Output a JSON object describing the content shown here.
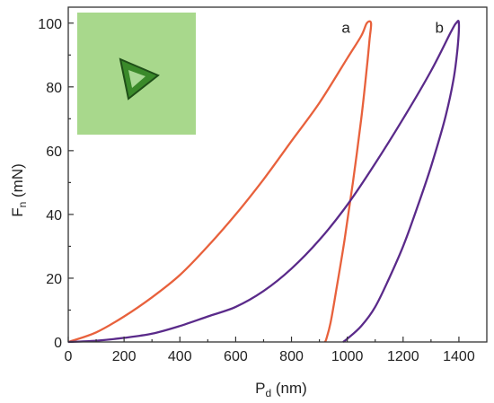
{
  "chart_data": {
    "type": "line",
    "title": "",
    "xlabel": {
      "main": "P",
      "sub": "d",
      "unit": " (nm)"
    },
    "ylabel": {
      "main": "F",
      "sub": "n",
      "unit": " (mN)"
    },
    "xlim": [
      0,
      1500
    ],
    "ylim": [
      0,
      105
    ],
    "xticks": [
      0,
      200,
      400,
      600,
      800,
      1000,
      1200,
      1400
    ],
    "yticks": [
      0,
      20,
      40,
      60,
      80,
      100
    ],
    "xtick_labels": [
      "0",
      "200",
      "400",
      "600",
      "800",
      "1000",
      "1200",
      "1400"
    ],
    "ytick_labels": [
      "0",
      "20",
      "40",
      "60",
      "80",
      "100"
    ],
    "grid": false,
    "inset": {
      "description": "indentation-micrograph",
      "background": "#a8d88c",
      "mark_color": "#3a8a2a"
    },
    "series": [
      {
        "name": "a",
        "color": "#e8613c",
        "x": [
          0,
          100,
          200,
          300,
          400,
          500,
          600,
          700,
          800,
          900,
          1000,
          1050,
          1070,
          1085,
          1080,
          1070,
          1050,
          1020,
          990,
          960,
          940,
          925,
          920
        ],
        "y": [
          0,
          3,
          8,
          14,
          21,
          30,
          40,
          51,
          63,
          75,
          89,
          96,
          100,
          100,
          95,
          86,
          70,
          50,
          32,
          16,
          6,
          1,
          0
        ]
      },
      {
        "name": "b",
        "color": "#5a2a8a",
        "x": [
          0,
          100,
          200,
          300,
          400,
          500,
          600,
          700,
          800,
          900,
          1000,
          1100,
          1200,
          1300,
          1370,
          1390,
          1400,
          1395,
          1380,
          1350,
          1300,
          1250,
          1200,
          1150,
          1100,
          1050,
          1000,
          985
        ],
        "y": [
          0,
          0.4,
          1.3,
          2.6,
          5,
          8,
          11,
          16,
          23,
          32,
          43,
          56,
          70,
          85,
          97,
          100,
          100,
          92,
          82,
          70,
          55,
          42,
          30,
          20,
          11,
          5,
          1,
          0
        ]
      }
    ],
    "curve_labels": [
      {
        "text": "a",
        "x": 995,
        "y": 97
      },
      {
        "text": "b",
        "x": 1330,
        "y": 97
      }
    ]
  }
}
